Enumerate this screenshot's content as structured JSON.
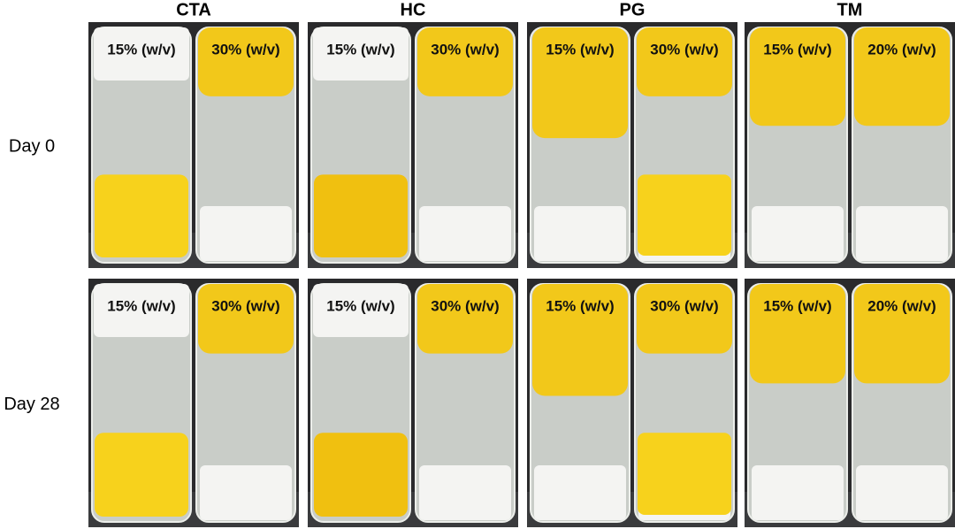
{
  "columns": [
    "CTA",
    "HC",
    "PG",
    "TM"
  ],
  "rows": [
    {
      "label": "Day 0",
      "panels": [
        {
          "labels": [
            "15% (w/v)",
            "30% (w/v)"
          ]
        },
        {
          "labels": [
            "15% (w/v)",
            "30% (w/v)"
          ]
        },
        {
          "labels": [
            "15% (w/v)",
            "30% (w/v)"
          ]
        },
        {
          "labels": [
            "15% (w/v)",
            "20% (w/v)"
          ]
        }
      ]
    },
    {
      "label": "Day 28",
      "panels": [
        {
          "labels": [
            "15% (w/v)",
            "30% (w/v)"
          ]
        },
        {
          "labels": [
            "15% (w/v)",
            "30% (w/v)"
          ]
        },
        {
          "labels": [
            "15% (w/v)",
            "30% (w/v)"
          ]
        },
        {
          "labels": [
            "15% (w/v)",
            "20% (w/v)"
          ]
        }
      ]
    }
  ]
}
